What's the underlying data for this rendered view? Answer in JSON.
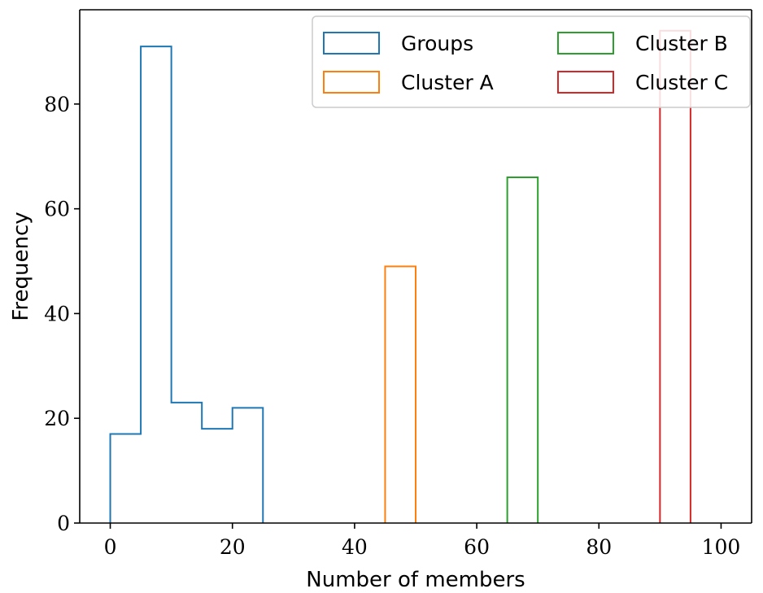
{
  "chart_data": {
    "type": "histogram",
    "xlabel": "Number of members",
    "ylabel": "Frequency",
    "xlim": [
      -5,
      105
    ],
    "ylim": [
      0,
      98
    ],
    "xticks": [
      0,
      20,
      40,
      60,
      80,
      100
    ],
    "yticks": [
      0,
      20,
      40,
      60,
      80
    ],
    "xtick_labels": [
      "0",
      "20",
      "40",
      "60",
      "80",
      "100"
    ],
    "ytick_labels": [
      "0",
      "20",
      "40",
      "60",
      "80"
    ],
    "legend_position": "top-right",
    "series": [
      {
        "name": "Groups",
        "color": "#1f77b4",
        "bin_edges": [
          0,
          5,
          10,
          15,
          20,
          25
        ],
        "counts": [
          17,
          91,
          23,
          18,
          22
        ]
      },
      {
        "name": "Cluster A",
        "color": "#ff7f0e",
        "bin_edges": [
          45,
          50
        ],
        "counts": [
          49
        ]
      },
      {
        "name": "Cluster B",
        "color": "#2ca02c",
        "bin_edges": [
          65,
          70
        ],
        "counts": [
          66
        ]
      },
      {
        "name": "Cluster C",
        "color": "#d62728",
        "bin_edges": [
          90,
          95
        ],
        "counts": [
          94
        ]
      }
    ]
  }
}
